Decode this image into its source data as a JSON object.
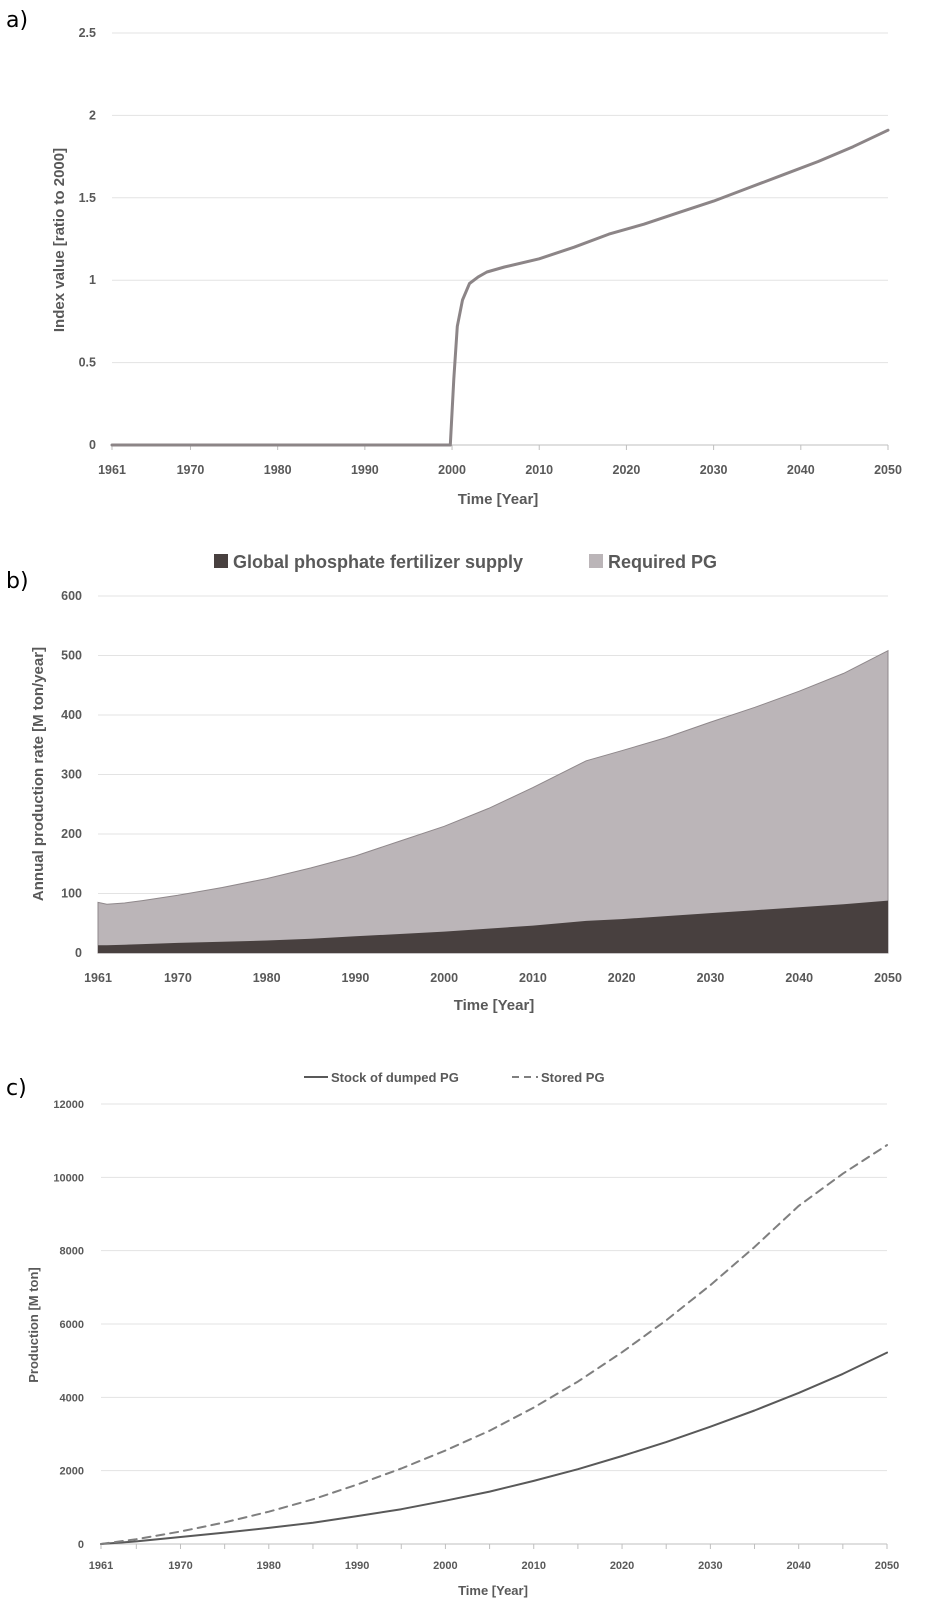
{
  "panels": {
    "a": {
      "letter": "a)",
      "xlabel": "Time [Year]",
      "ylabel": "Index value [ratio to 2000]"
    },
    "b": {
      "letter": "b)",
      "xlabel": "Time [Year]",
      "ylabel": "Annual production rate [M ton/year]",
      "legend": [
        "Global phosphate fertilizer supply",
        "Required PG"
      ]
    },
    "c": {
      "letter": "c)",
      "xlabel": "Time [Year]",
      "ylabel": "Production [M ton]",
      "legend": [
        "Stock of dumped PG",
        "Stored PG"
      ]
    }
  },
  "chart_data": [
    {
      "type": "line",
      "panel": "a",
      "xlabel": "Time [Year]",
      "ylabel": "Index value [ratio to 2000]",
      "xlim": [
        1961,
        2050
      ],
      "ylim": [
        0,
        2.5
      ],
      "xticks": [
        "1961",
        "1970",
        "1980",
        "1990",
        "2000",
        "2010",
        "2020",
        "2030",
        "2040",
        "2050"
      ],
      "yticks": [
        "0",
        "0.5",
        "1",
        "1.5",
        "2",
        "2.5"
      ],
      "grid": true,
      "colors": {
        "line": "#8c8587"
      },
      "series": [
        {
          "x": [
            1961,
            1999,
            1999.8,
            2000.2,
            2000.6,
            2001.2,
            2002,
            2003,
            2004,
            2006,
            2010,
            2014,
            2018,
            2022,
            2026,
            2030,
            2034,
            2038,
            2042,
            2046,
            2050
          ],
          "values": [
            0,
            0,
            0,
            0.4,
            0.72,
            0.88,
            0.98,
            1.02,
            1.05,
            1.08,
            1.13,
            1.2,
            1.28,
            1.34,
            1.41,
            1.48,
            1.56,
            1.64,
            1.72,
            1.81,
            1.91
          ]
        }
      ]
    },
    {
      "type": "area",
      "panel": "b",
      "xlabel": "Time [Year]",
      "ylabel": "Annual production rate [M ton/year]",
      "xlim": [
        1961,
        2050
      ],
      "ylim": [
        0,
        600
      ],
      "xticks": [
        "1961",
        "1970",
        "1980",
        "1990",
        "2000",
        "2010",
        "2020",
        "2030",
        "2040",
        "2050"
      ],
      "yticks": [
        "0",
        "100",
        "200",
        "300",
        "400",
        "500",
        "600"
      ],
      "grid": true,
      "legend_position": "top-center",
      "x": [
        1961,
        1962,
        1964,
        1966,
        1970,
        1975,
        1980,
        1985,
        1990,
        1995,
        2000,
        2005,
        2010,
        2016,
        2020,
        2025,
        2030,
        2035,
        2040,
        2045,
        2050
      ],
      "series": [
        {
          "name": "Global phosphate fertilizer supply",
          "color": "#48403f",
          "values": [
            13,
            13,
            14,
            15,
            17,
            19,
            21,
            24,
            28,
            32,
            36,
            41,
            46,
            54,
            57,
            62,
            67,
            72,
            77,
            82,
            88
          ]
        },
        {
          "name": "Required PG",
          "color": "#bbb5b8",
          "values": [
            85,
            82,
            84,
            88,
            97,
            110,
            125,
            143,
            163,
            188,
            213,
            243,
            278,
            323,
            340,
            362,
            388,
            413,
            440,
            470,
            508
          ]
        }
      ]
    },
    {
      "type": "line",
      "panel": "c",
      "xlabel": "Time [Year]",
      "ylabel": "Production [M ton]",
      "xlim": [
        1961,
        2050
      ],
      "ylim": [
        0,
        12000
      ],
      "xticks": [
        "1961",
        "1970",
        "1980",
        "1990",
        "2000",
        "2010",
        "2020",
        "2030",
        "2040",
        "2050"
      ],
      "yticks": [
        "0",
        "2000",
        "4000",
        "6000",
        "8000",
        "10000",
        "12000"
      ],
      "grid": true,
      "legend_position": "top-center",
      "x": [
        1961,
        1965,
        1970,
        1975,
        1980,
        1985,
        1990,
        1995,
        2000,
        2005,
        2010,
        2015,
        2020,
        2025,
        2030,
        2035,
        2040,
        2045,
        2050
      ],
      "series": [
        {
          "name": "Stock of dumped PG",
          "style": "solid",
          "color": "#595959",
          "values": [
            0,
            70,
            190,
            310,
            440,
            580,
            760,
            950,
            1180,
            1430,
            1720,
            2040,
            2400,
            2780,
            3200,
            3640,
            4120,
            4640,
            5220
          ]
        },
        {
          "name": "Stored PG",
          "style": "dashed",
          "color": "#7f7f7f",
          "values": [
            0,
            130,
            340,
            590,
            880,
            1220,
            1620,
            2060,
            2550,
            3090,
            3720,
            4430,
            5230,
            6100,
            7060,
            8100,
            9220,
            10100,
            10880
          ]
        }
      ]
    }
  ]
}
